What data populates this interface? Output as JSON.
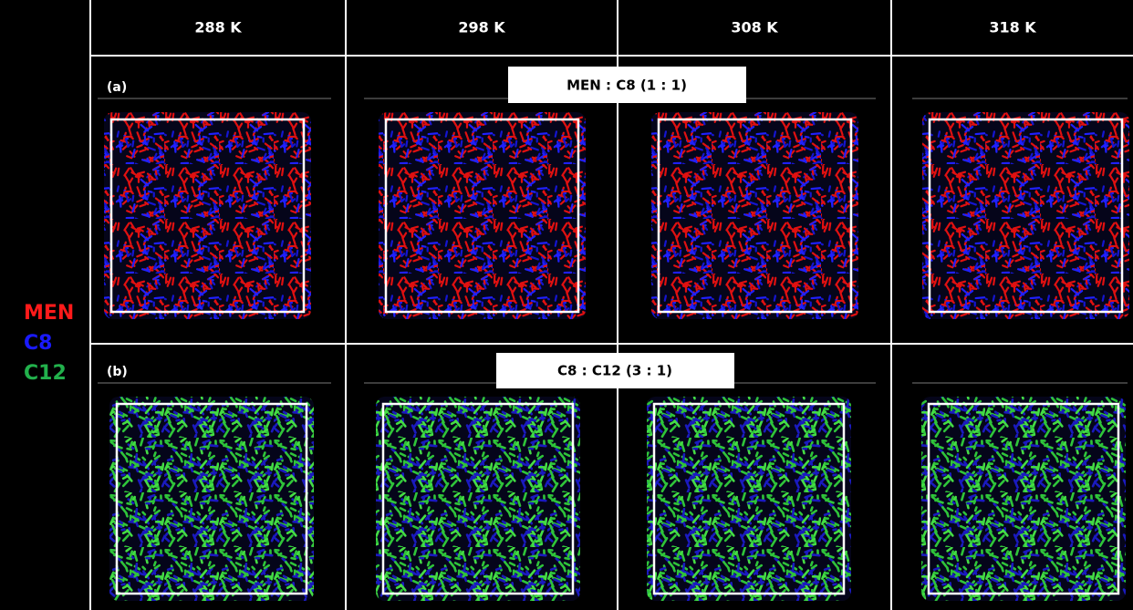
{
  "header": {
    "columns": [
      "288 K",
      "298 K",
      "308 K",
      "318 K"
    ]
  },
  "legend": [
    "MEN",
    "C8",
    "C12"
  ],
  "rows": [
    {
      "label": "(a)",
      "title": "MEN : C8 (1 : 1)"
    },
    {
      "label": "(b)",
      "title": "C8 : C12 (3 : 1)"
    }
  ]
}
